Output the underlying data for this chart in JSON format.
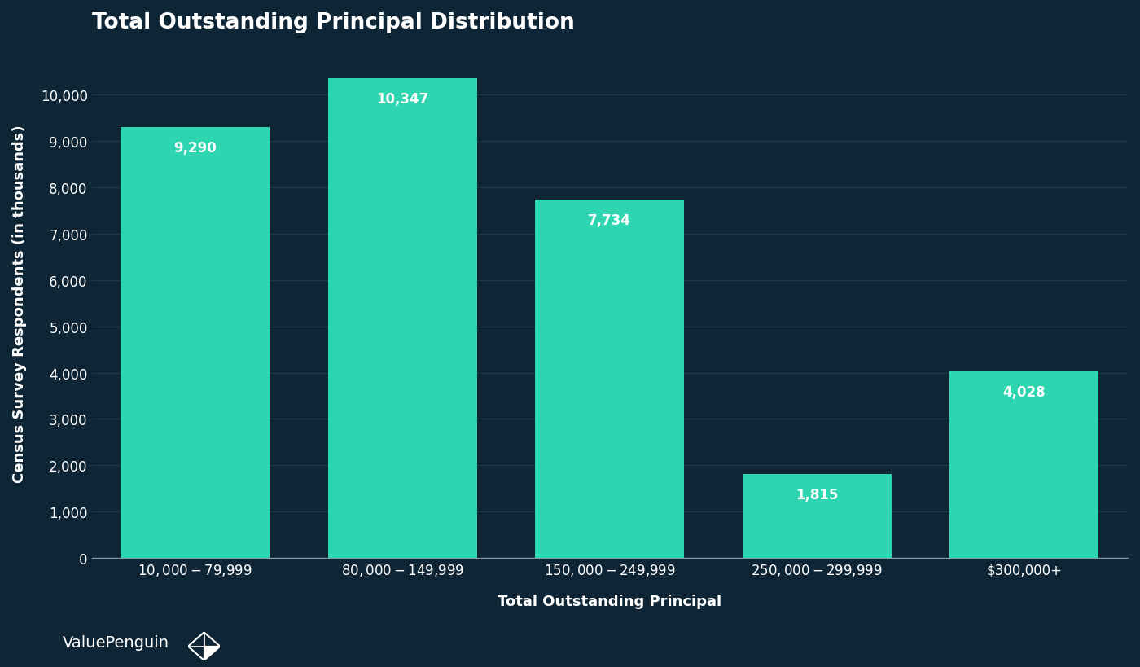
{
  "title": "Total Outstanding Principal Distribution",
  "xlabel": "Total Outstanding Principal",
  "ylabel": "Census Survey Respondents (in thousands)",
  "categories": [
    "$10,000-$79,999",
    "$80,000-$149,999",
    "$150,000-$249,999",
    "$250,000-$299,999",
    "$300,000+"
  ],
  "values": [
    9290,
    10347,
    7734,
    1815,
    4028
  ],
  "bar_color": "#2DD5B0",
  "background_color": "#0e2535",
  "plot_bg_color": "#0e2535",
  "text_color": "#ffffff",
  "bottom_spine_color": "#8899aa",
  "grid_color": "#1e3a4a",
  "yticks": [
    0,
    1000,
    2000,
    3000,
    4000,
    5000,
    6000,
    7000,
    8000,
    9000,
    10000
  ],
  "ylim": [
    0,
    11000
  ],
  "title_fontsize": 19,
  "label_fontsize": 13,
  "tick_fontsize": 12,
  "value_fontsize": 12,
  "watermark": "ValuePenguin",
  "watermark_fontsize": 14,
  "bar_width": 0.72
}
